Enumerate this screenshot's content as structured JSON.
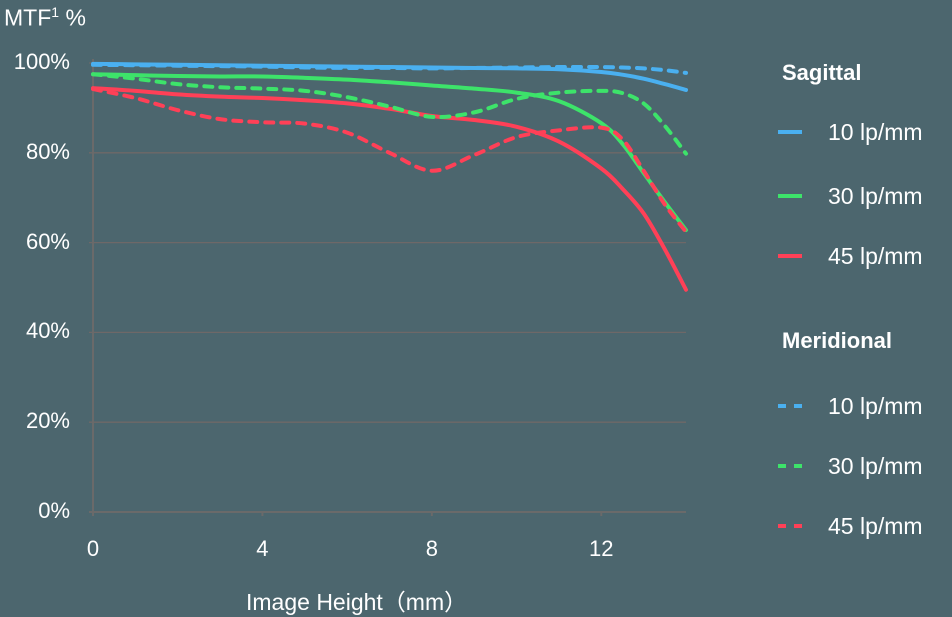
{
  "chart_data": {
    "type": "line",
    "title": "",
    "ylabel": "MTF¹ %",
    "xlabel": "Image Height（mm）",
    "xlim": [
      0,
      14
    ],
    "ylim": [
      0,
      100
    ],
    "xticks": [
      0,
      4,
      8,
      12
    ],
    "yticks": [
      0,
      20,
      40,
      60,
      80,
      100
    ],
    "ytick_labels": [
      "0%",
      "20%",
      "40%",
      "60%",
      "80%",
      "100%"
    ],
    "grid": "horizontal",
    "legend_position": "right",
    "legend_groups": [
      {
        "title": "Sagittal",
        "style": "solid",
        "entries": [
          "10 lp/mm",
          "30 lp/mm",
          "45 lp/mm"
        ]
      },
      {
        "title": "Meridional",
        "style": "dashed",
        "entries": [
          "10 lp/mm",
          "30 lp/mm",
          "45 lp/mm"
        ]
      }
    ],
    "x": [
      0,
      1,
      2,
      3,
      4,
      5,
      6,
      7,
      8,
      9,
      10,
      11,
      12,
      12.5,
      13,
      13.5,
      14
    ],
    "series": [
      {
        "name": "Sagittal 10 lp/mm",
        "color": "#4ab0f0",
        "style": "solid",
        "values": [
          99.8,
          99.7,
          99.6,
          99.5,
          99.4,
          99.3,
          99.2,
          99.1,
          99.0,
          98.9,
          98.8,
          98.6,
          98.0,
          97.4,
          96.5,
          95.3,
          94.0
        ]
      },
      {
        "name": "Sagittal 30 lp/mm",
        "color": "#3de36a",
        "style": "solid",
        "values": [
          97.5,
          97.3,
          97.1,
          97.0,
          97.0,
          96.7,
          96.3,
          95.7,
          95.0,
          94.3,
          93.4,
          91.5,
          86.6,
          82.0,
          75.5,
          69.0,
          62.8
        ]
      },
      {
        "name": "Sagittal 45 lp/mm",
        "color": "#ff4057",
        "style": "solid",
        "values": [
          94.4,
          93.8,
          93.0,
          92.5,
          92.2,
          91.7,
          91.0,
          89.8,
          88.2,
          87.3,
          85.8,
          82.5,
          76.5,
          72.0,
          66.5,
          58.5,
          49.5
        ]
      },
      {
        "name": "Meridional 10 lp/mm",
        "color": "#4ab0f0",
        "style": "dashed",
        "values": [
          99.6,
          99.5,
          99.4,
          99.3,
          99.2,
          99.0,
          98.9,
          98.9,
          98.8,
          98.9,
          99.0,
          99.1,
          99.1,
          99.0,
          98.8,
          98.4,
          97.8
        ]
      },
      {
        "name": "Meridional 30 lp/mm",
        "color": "#3de36a",
        "style": "dashed",
        "values": [
          97.5,
          96.5,
          95.3,
          94.6,
          94.3,
          93.8,
          92.4,
          90.3,
          88.0,
          89.0,
          92.0,
          93.4,
          93.8,
          93.3,
          91.0,
          86.0,
          79.8
        ]
      },
      {
        "name": "Meridional 45 lp/mm",
        "color": "#ff4057",
        "style": "dashed",
        "values": [
          94.2,
          92.2,
          89.5,
          87.5,
          86.8,
          86.5,
          84.5,
          80.0,
          76.0,
          79.5,
          83.5,
          85.0,
          85.6,
          83.0,
          76.0,
          68.5,
          62.4
        ]
      }
    ]
  },
  "page": {
    "ylabel_main": "MTF",
    "ylabel_sup": "1",
    "ylabel_unit": " %",
    "xlabel": "Image Height（mm）",
    "legend": {
      "sagittal_title": "Sagittal",
      "meridional_title": "Meridional",
      "items": [
        "10 lp/mm",
        "30 lp/mm",
        "45 lp/mm"
      ]
    }
  }
}
